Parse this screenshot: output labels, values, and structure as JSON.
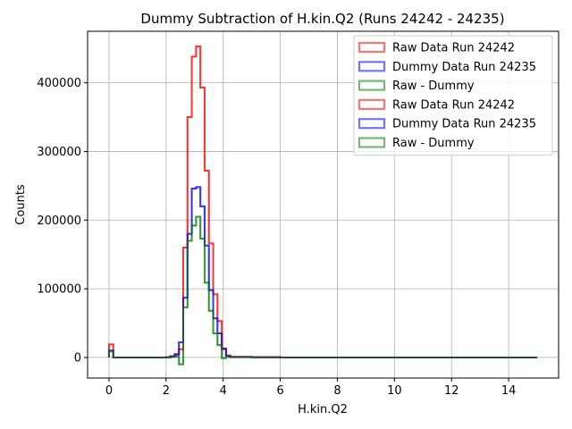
{
  "chart_data": {
    "type": "line",
    "title": "Dummy Subtraction of H.kin.Q2 (Runs 24242 - 24235)",
    "xlabel": "H.kin.Q2",
    "ylabel": "Counts",
    "xlim": [
      -0.75,
      15.75
    ],
    "ylim": [
      -30000,
      475000
    ],
    "grid": true,
    "legend_position": "top-right",
    "x_ticks": [
      0,
      2,
      4,
      6,
      8,
      10,
      12,
      14
    ],
    "x_tick_labels": [
      "0",
      "2",
      "4",
      "6",
      "8",
      "10",
      "12",
      "14"
    ],
    "y_ticks": [
      0,
      100000,
      200000,
      300000,
      400000
    ],
    "y_tick_labels": [
      "0",
      "100000",
      "200000",
      "300000",
      "400000"
    ],
    "step_edges": [
      0,
      0.15,
      2.0,
      2.15,
      2.3,
      2.45,
      2.6,
      2.75,
      2.9,
      3.05,
      3.2,
      3.35,
      3.5,
      3.65,
      3.8,
      3.95,
      4.1,
      4.25,
      5.0,
      6.0,
      15.0
    ],
    "series": [
      {
        "name": "Raw Data Run 24242",
        "color": "#ff0000",
        "values": [
          19000,
          0,
          500,
          2000,
          5000,
          12000,
          160000,
          350000,
          438000,
          453000,
          393000,
          272000,
          166000,
          92000,
          53000,
          12000,
          3000,
          1000,
          500,
          0
        ]
      },
      {
        "name": "Dummy Data Run 24235",
        "color": "#0000ff",
        "values": [
          10000,
          0,
          200,
          1000,
          4000,
          22000,
          87000,
          180000,
          246000,
          248000,
          220000,
          163000,
          98000,
          57000,
          35000,
          13000,
          2000,
          600,
          200,
          0
        ]
      },
      {
        "name": "Raw - Dummy",
        "color": "#008000",
        "values": [
          9000,
          0,
          300,
          1000,
          1000,
          -10000,
          73000,
          170000,
          192000,
          205000,
          173000,
          109000,
          68000,
          35000,
          18000,
          -1000,
          1000,
          400,
          300,
          0
        ]
      },
      {
        "name": "Raw Data Run 24242",
        "color": "#ff0000",
        "values": [
          19000,
          0,
          500,
          2000,
          5000,
          12000,
          160000,
          350000,
          438000,
          453000,
          393000,
          272000,
          166000,
          92000,
          53000,
          12000,
          3000,
          1000,
          500,
          0
        ]
      },
      {
        "name": "Dummy Data Run 24235",
        "color": "#0000ff",
        "values": [
          10000,
          0,
          200,
          1000,
          4000,
          22000,
          87000,
          180000,
          246000,
          248000,
          220000,
          163000,
          98000,
          57000,
          35000,
          13000,
          2000,
          600,
          200,
          0
        ]
      },
      {
        "name": "Raw - Dummy",
        "color": "#008000",
        "values": [
          9000,
          0,
          300,
          1000,
          1000,
          -10000,
          73000,
          170000,
          192000,
          205000,
          173000,
          109000,
          68000,
          35000,
          18000,
          -1000,
          1000,
          400,
          300,
          0
        ]
      }
    ]
  }
}
